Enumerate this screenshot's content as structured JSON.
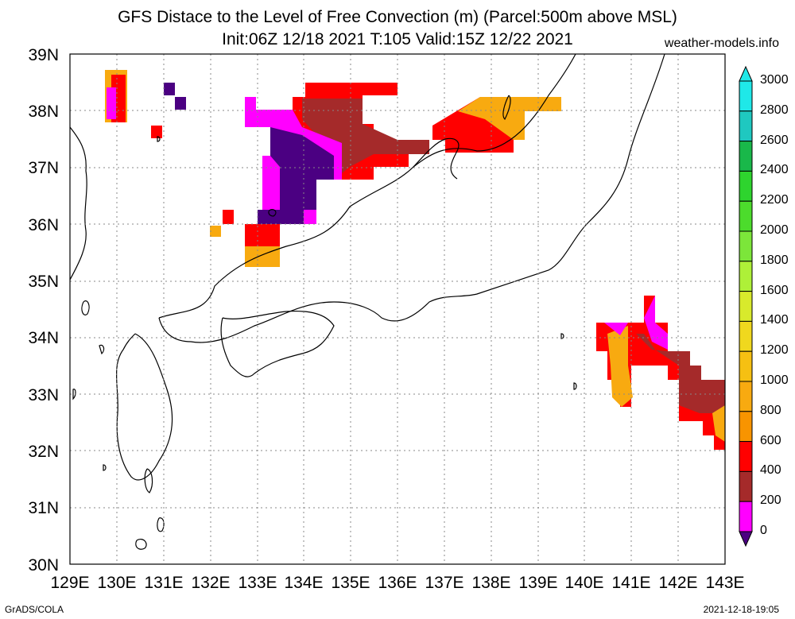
{
  "title_line1": "GFS Distace to the Level of Free Convection (m) (Parcel:500m above MSL)",
  "title_line2": "Init:06Z 12/18 2021 T:105 Valid:15Z 12/22 2021",
  "site": "weather-models.info",
  "footer_left": "GrADS/COLA",
  "footer_right": "2021-12-18-19:05",
  "y_ticks": [
    "39N",
    "38N",
    "37N",
    "36N",
    "35N",
    "34N",
    "33N",
    "32N",
    "31N",
    "30N"
  ],
  "x_ticks": [
    "129E",
    "130E",
    "131E",
    "132E",
    "133E",
    "134E",
    "135E",
    "136E",
    "137E",
    "138E",
    "139E",
    "140E",
    "141E",
    "142E",
    "143E"
  ],
  "colorbar": {
    "labels": [
      "3000",
      "2800",
      "2600",
      "2400",
      "2200",
      "2000",
      "1800",
      "1600",
      "1400",
      "1200",
      "1000",
      "800",
      "600",
      "400",
      "200",
      "0"
    ],
    "colors": [
      "#1fe8e8",
      "#1fc8c0",
      "#19b84a",
      "#2ed42e",
      "#4cdc2c",
      "#7ce63a",
      "#aef038",
      "#d8ea2c",
      "#f0d81e",
      "#f6c012",
      "#f8aa10",
      "#f89400",
      "#ff0000",
      "#a52a2a",
      "#ff00ff",
      "#4b0082"
    ]
  }
}
